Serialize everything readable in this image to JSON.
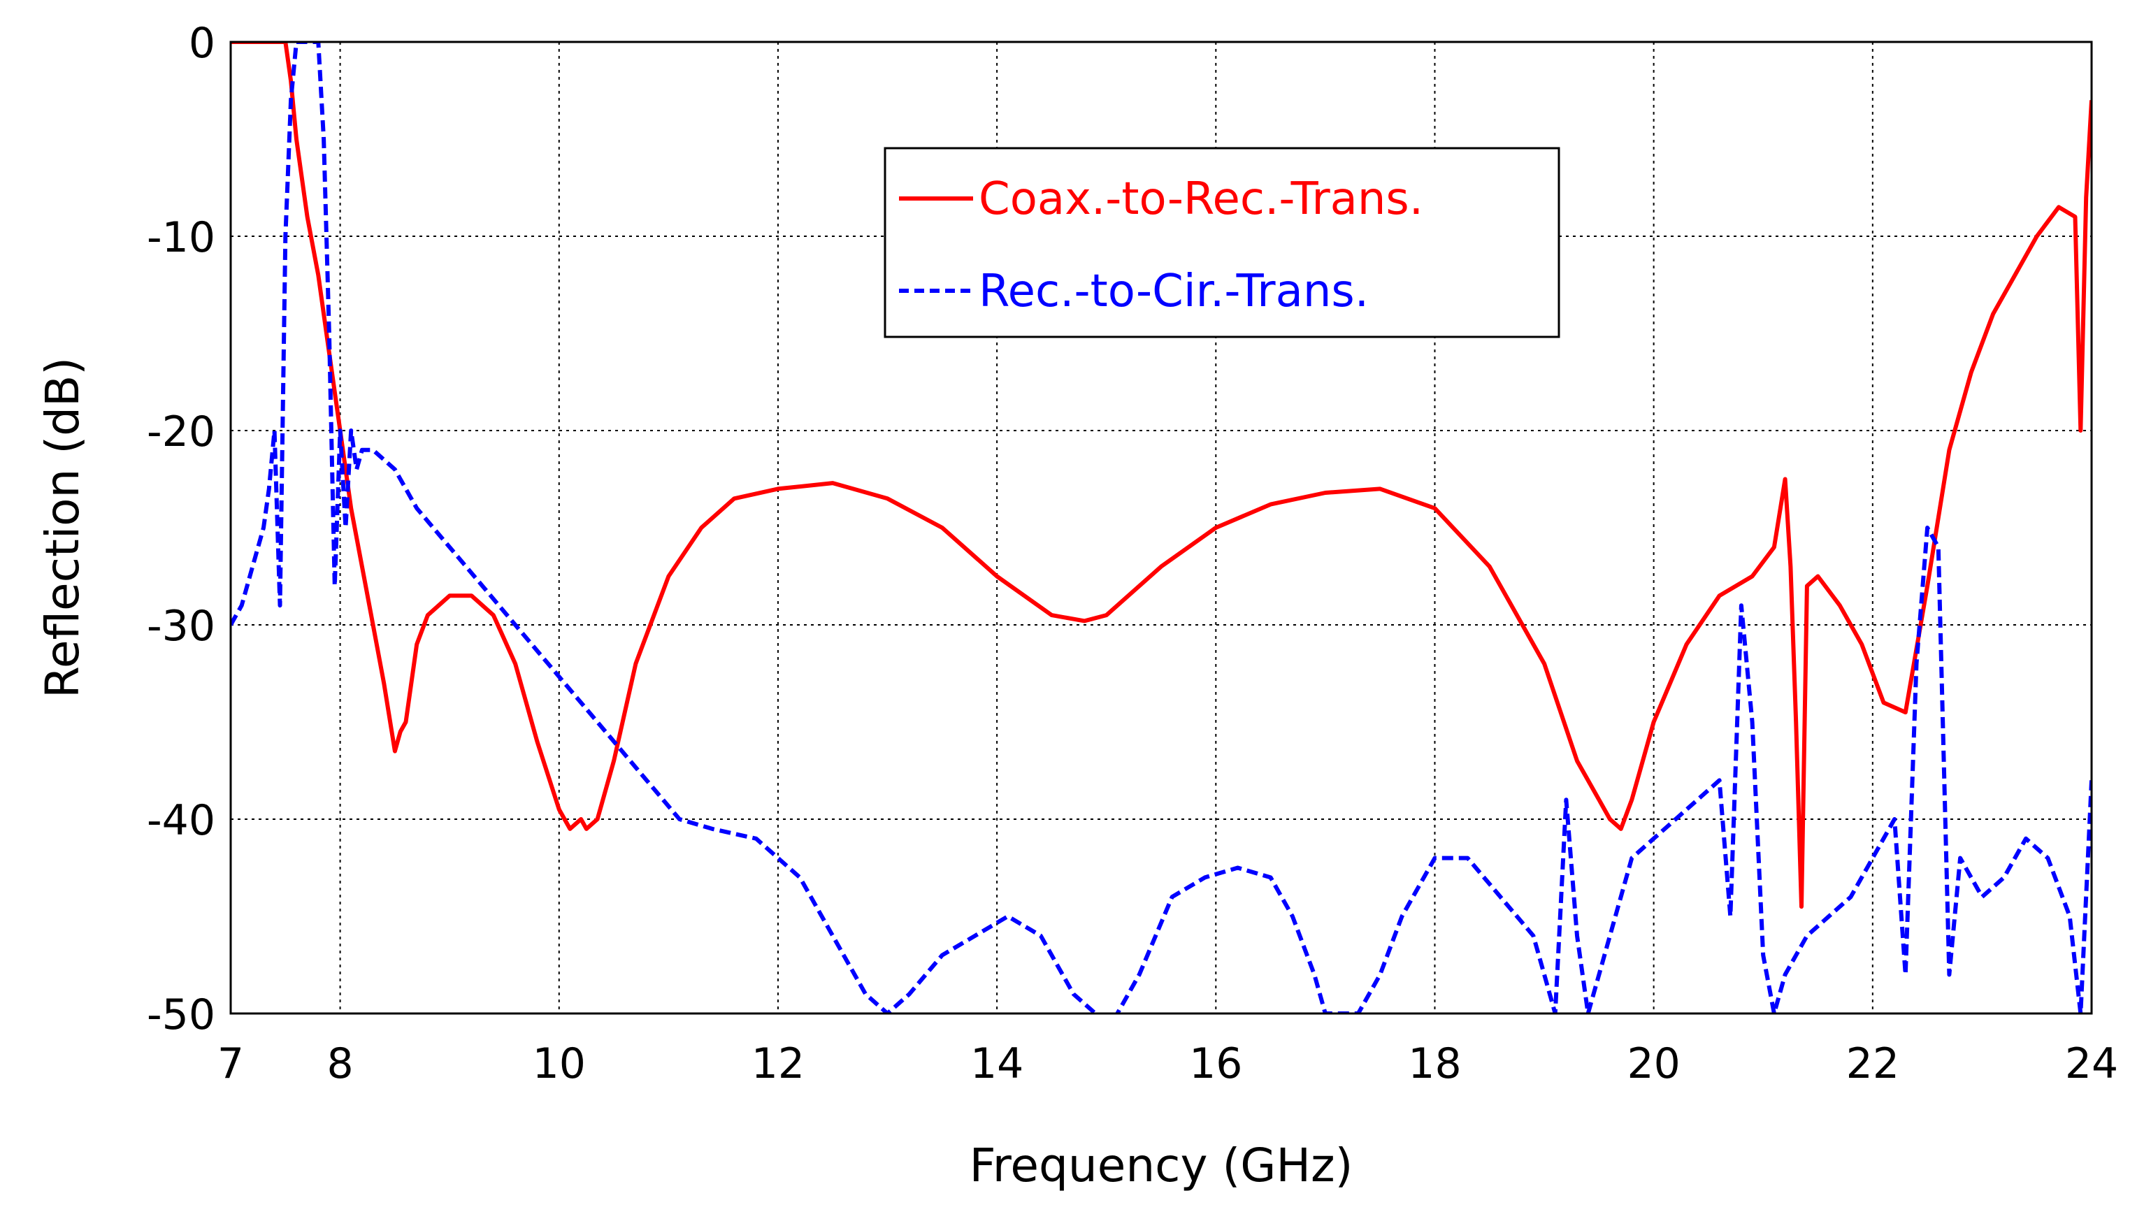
{
  "chart_data": {
    "type": "line",
    "title": "",
    "xlabel": "Frequency (GHz)",
    "ylabel": "Reflection (dB)",
    "xlim": [
      7,
      24
    ],
    "ylim": [
      -50,
      0
    ],
    "xticks": [
      7,
      8,
      10,
      12,
      14,
      16,
      18,
      20,
      22,
      24
    ],
    "yticks": [
      0,
      -10,
      -20,
      -30,
      -40,
      -50
    ],
    "grid": true,
    "legend_position": "top-center",
    "series": [
      {
        "name": "Coax.-to-Rec.-Trans.",
        "color": "#ff0000",
        "style": "solid",
        "x": [
          7.0,
          7.3,
          7.5,
          7.55,
          7.6,
          7.7,
          7.8,
          7.9,
          8.0,
          8.1,
          8.2,
          8.3,
          8.4,
          8.5,
          8.55,
          8.6,
          8.7,
          8.8,
          9.0,
          9.2,
          9.4,
          9.6,
          9.8,
          10.0,
          10.1,
          10.2,
          10.25,
          10.35,
          10.5,
          10.7,
          11.0,
          11.3,
          11.6,
          12.0,
          12.5,
          13.0,
          13.5,
          14.0,
          14.5,
          14.8,
          15.0,
          15.5,
          16.0,
          16.5,
          17.0,
          17.5,
          18.0,
          18.5,
          19.0,
          19.3,
          19.5,
          19.6,
          19.7,
          19.8,
          20.0,
          20.3,
          20.6,
          20.9,
          21.1,
          21.2,
          21.25,
          21.3,
          21.35,
          21.4,
          21.5,
          21.7,
          21.9,
          22.1,
          22.3,
          22.5,
          22.7,
          22.9,
          23.1,
          23.3,
          23.5,
          23.7,
          23.85,
          23.9,
          23.95,
          24.0
        ],
        "y": [
          0,
          0,
          0,
          -2,
          -5,
          -9,
          -12,
          -16,
          -20,
          -24,
          -27,
          -30,
          -33,
          -36.5,
          -35.5,
          -35,
          -31,
          -29.5,
          -28.5,
          -28.5,
          -29.5,
          -32,
          -36,
          -39.5,
          -40.5,
          -40,
          -40.5,
          -40,
          -37,
          -32,
          -27.5,
          -25,
          -23.5,
          -23,
          -22.7,
          -23.5,
          -25,
          -27.5,
          -29.5,
          -29.8,
          -29.5,
          -27,
          -25,
          -23.8,
          -23.2,
          -23,
          -24,
          -27,
          -32,
          -37,
          -39,
          -40,
          -40.5,
          -39,
          -35,
          -31,
          -28.5,
          -27.5,
          -26,
          -22.5,
          -27,
          -35,
          -44.5,
          -28,
          -27.5,
          -29,
          -31,
          -34,
          -34.5,
          -28,
          -21,
          -17,
          -14,
          -12,
          -10,
          -8.5,
          -9,
          -20,
          -8,
          -3
        ]
      },
      {
        "name": "Rec.-to-Cir.-Trans.",
        "color": "#0000ff",
        "style": "dashed",
        "x": [
          7.0,
          7.1,
          7.2,
          7.3,
          7.35,
          7.4,
          7.45,
          7.5,
          7.55,
          7.6,
          7.7,
          7.8,
          7.85,
          7.9,
          7.95,
          8.0,
          8.05,
          8.1,
          8.15,
          8.2,
          8.3,
          8.5,
          8.7,
          9.0,
          9.3,
          9.6,
          9.9,
          10.2,
          10.5,
          10.8,
          11.1,
          11.4,
          11.8,
          12.2,
          12.5,
          12.8,
          13.0,
          13.2,
          13.5,
          13.8,
          14.1,
          14.4,
          14.7,
          14.9,
          15.0,
          15.3,
          15.6,
          15.9,
          16.2,
          16.5,
          16.7,
          16.9,
          17.0,
          17.3,
          17.5,
          17.7,
          18.0,
          18.3,
          18.6,
          18.9,
          19.0,
          19.1,
          19.2,
          19.3,
          19.4,
          19.5,
          19.6,
          19.8,
          20.0,
          20.2,
          20.4,
          20.6,
          20.7,
          20.8,
          20.9,
          21.0,
          21.1,
          21.2,
          21.4,
          21.6,
          21.8,
          22.0,
          22.2,
          22.3,
          22.4,
          22.5,
          22.6,
          22.7,
          22.8,
          23.0,
          23.2,
          23.4,
          23.6,
          23.8,
          23.9,
          24.0
        ],
        "y": [
          -30,
          -29,
          -27,
          -25,
          -23,
          -20,
          -29,
          -10,
          -3,
          0,
          0,
          0,
          -5,
          -15,
          -28,
          -20,
          -25,
          -20,
          -22,
          -21,
          -21,
          -22,
          -24,
          -26,
          -28,
          -30,
          -32,
          -34,
          -36,
          -38,
          -40,
          -40.5,
          -41,
          -43,
          -46,
          -49,
          -50,
          -49,
          -47,
          -46,
          -45,
          -46,
          -49,
          -50,
          -51,
          -48,
          -44,
          -43,
          -42.5,
          -43,
          -45,
          -48,
          -50,
          -50,
          -48,
          -45,
          -42,
          -42,
          -44,
          -46,
          -48,
          -50,
          -39,
          -46,
          -50,
          -48,
          -46,
          -42,
          -41,
          -40,
          -39,
          -38,
          -45,
          -29,
          -35,
          -47,
          -50,
          -48,
          -46,
          -45,
          -44,
          -42,
          -40,
          -48,
          -32,
          -25,
          -26,
          -48,
          -42,
          -44,
          -43,
          -41,
          -42,
          -45,
          -50,
          -38
        ]
      }
    ]
  }
}
